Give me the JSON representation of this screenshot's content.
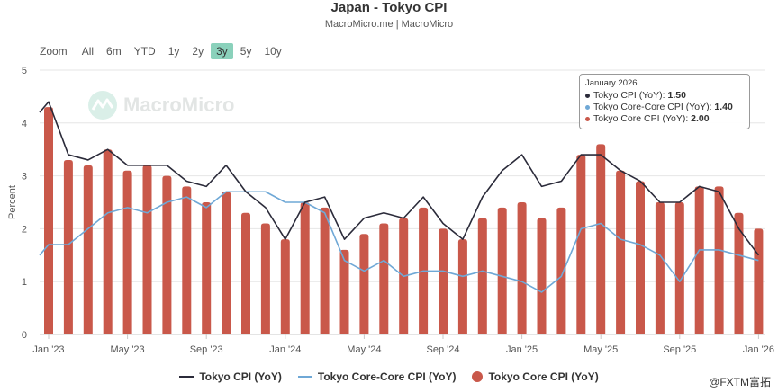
{
  "header": {
    "title": "Japan - Tokyo CPI",
    "subtitle": "MacroMicro.me | MacroMicro"
  },
  "zoom": {
    "label": "Zoom",
    "buttons": [
      "All",
      "6m",
      "YTD",
      "1y",
      "2y",
      "3y",
      "5y",
      "10y"
    ],
    "active": "3y"
  },
  "watermark": {
    "text": "MacroMicro"
  },
  "credit": {
    "text": "@FXTM富拓"
  },
  "colors": {
    "cpi": "#2b2b3a",
    "core_core": "#6fa8d6",
    "core": "#c9584a",
    "zoom_active": "#8ad1bb"
  },
  "tooltip": {
    "date": "January 2026",
    "rows": [
      {
        "label": "Tokyo CPI (YoY): ",
        "value": "1.50",
        "color": "#2b2b3a"
      },
      {
        "label": "Tokyo Core-Core CPI (YoY): ",
        "value": "1.40",
        "color": "#6fa8d6"
      },
      {
        "label": "Tokyo Core CPI (YoY): ",
        "value": "2.00",
        "color": "#c9584a"
      }
    ]
  },
  "chart_data": {
    "type": "bar",
    "title": "Japan - Tokyo CPI",
    "xlabel": "",
    "ylabel": "Percent",
    "ylim": [
      0,
      5
    ],
    "yticks": [
      0,
      1,
      2,
      3,
      4,
      5
    ],
    "grid": true,
    "legend_position": "bottom",
    "x_tick_labels": [
      {
        "label": "Jan '23",
        "index": 0
      },
      {
        "label": "May '23",
        "index": 4
      },
      {
        "label": "Sep '23",
        "index": 8
      },
      {
        "label": "Jan '24",
        "index": 12
      },
      {
        "label": "May '24",
        "index": 16
      },
      {
        "label": "Sep '24",
        "index": 20
      },
      {
        "label": "Jan '25",
        "index": 24
      },
      {
        "label": "May '25",
        "index": 28
      },
      {
        "label": "Sep '25",
        "index": 32
      },
      {
        "label": "Jan '26",
        "index": 36
      }
    ],
    "categories": [
      "2023-01",
      "2023-02",
      "2023-03",
      "2023-04",
      "2023-05",
      "2023-06",
      "2023-07",
      "2023-08",
      "2023-09",
      "2023-10",
      "2023-11",
      "2023-12",
      "2024-01",
      "2024-02",
      "2024-03",
      "2024-04",
      "2024-05",
      "2024-06",
      "2024-07",
      "2024-08",
      "2024-09",
      "2024-10",
      "2024-11",
      "2024-12",
      "2025-01",
      "2025-02",
      "2025-03",
      "2025-04",
      "2025-05",
      "2025-06",
      "2025-07",
      "2025-08",
      "2025-09",
      "2025-10",
      "2025-11",
      "2025-12",
      "2026-01"
    ],
    "series": [
      {
        "name": "Tokyo CPI (YoY)",
        "type": "line",
        "values": [
          4.4,
          3.4,
          3.3,
          3.5,
          3.2,
          3.2,
          3.2,
          2.9,
          2.8,
          3.2,
          2.7,
          2.4,
          1.8,
          2.5,
          2.6,
          1.8,
          2.2,
          2.3,
          2.2,
          2.6,
          2.1,
          1.8,
          2.6,
          3.1,
          3.4,
          2.8,
          2.9,
          3.4,
          3.4,
          3.1,
          2.9,
          2.5,
          2.5,
          2.8,
          2.7,
          2.0,
          1.5
        ],
        "start_value": 4.2
      },
      {
        "name": "Tokyo Core-Core CPI (YoY)",
        "type": "line",
        "values": [
          1.7,
          1.7,
          2.0,
          2.3,
          2.4,
          2.3,
          2.5,
          2.6,
          2.4,
          2.7,
          2.7,
          2.7,
          2.5,
          2.5,
          2.3,
          1.4,
          1.2,
          1.4,
          1.1,
          1.2,
          1.2,
          1.1,
          1.2,
          1.1,
          1.0,
          0.8,
          1.1,
          2.0,
          2.1,
          1.8,
          1.7,
          1.5,
          1.0,
          1.6,
          1.6,
          1.5,
          1.4
        ],
        "start_value": 1.5
      },
      {
        "name": "Tokyo Core CPI (YoY)",
        "type": "bar",
        "values": [
          4.3,
          3.3,
          3.2,
          3.5,
          3.1,
          3.2,
          3.0,
          2.8,
          2.5,
          2.7,
          2.3,
          2.1,
          1.8,
          2.5,
          2.4,
          1.6,
          1.9,
          2.1,
          2.2,
          2.4,
          2.0,
          1.8,
          2.2,
          2.4,
          2.5,
          2.2,
          2.4,
          3.4,
          3.6,
          3.1,
          2.9,
          2.5,
          2.5,
          2.8,
          2.8,
          2.3,
          2.0
        ]
      }
    ]
  }
}
